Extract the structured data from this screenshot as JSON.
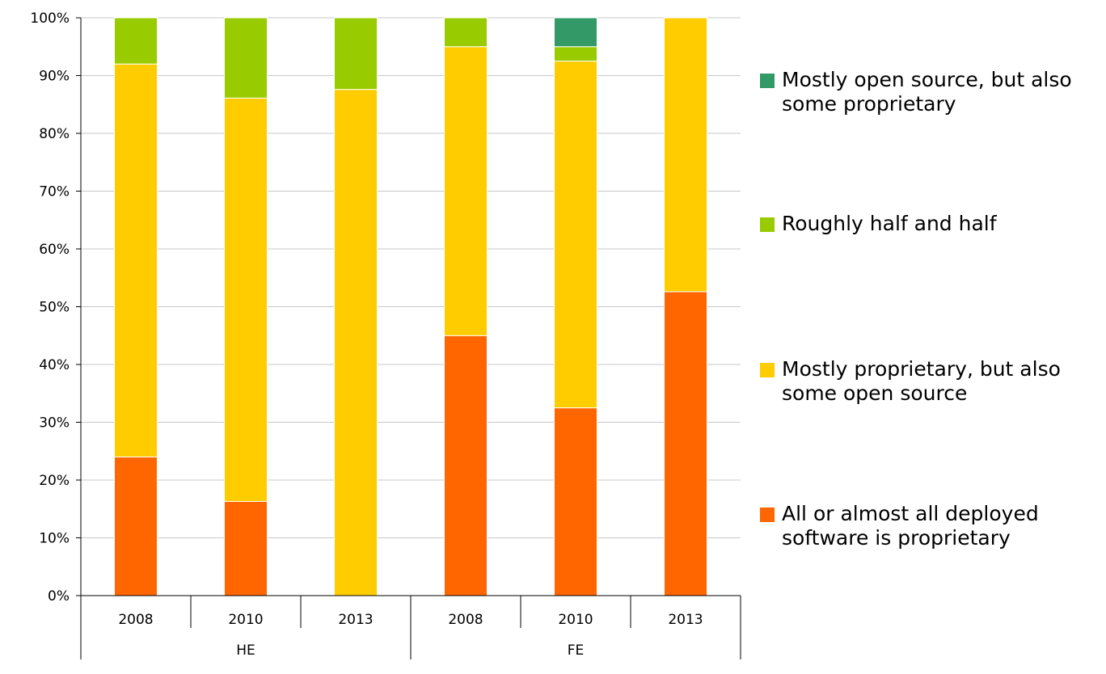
{
  "chart_data": {
    "type": "bar",
    "stacked": true,
    "percent": true,
    "groups": [
      {
        "label": "HE",
        "categories": [
          "2008",
          "2010",
          "2013"
        ]
      },
      {
        "label": "FE",
        "categories": [
          "2008",
          "2010",
          "2013"
        ]
      }
    ],
    "categories": [
      "2008",
      "2010",
      "2013",
      "2008",
      "2010",
      "2013"
    ],
    "series": [
      {
        "name": "All or almost all deployed software is proprietary",
        "color": "#ff6600",
        "values": [
          24,
          16.3,
          0,
          45,
          32.5,
          52.6
        ]
      },
      {
        "name": "Mostly proprietary, but also some open source",
        "color": "#ffcc00",
        "values": [
          68,
          69.8,
          87.6,
          50,
          60,
          47.4
        ]
      },
      {
        "name": "Roughly half and half",
        "color": "#99cc00",
        "values": [
          8,
          13.9,
          12.4,
          5,
          2.5,
          0
        ]
      },
      {
        "name": "Mostly open source, but also some proprietary",
        "color": "#339966",
        "values": [
          0,
          0,
          0,
          0,
          5,
          0
        ]
      }
    ],
    "yticks": [
      "0%",
      "10%",
      "20%",
      "30%",
      "40%",
      "50%",
      "60%",
      "70%",
      "80%",
      "90%",
      "100%"
    ],
    "ylim": [
      0,
      100
    ],
    "grid": true,
    "legend": "right",
    "title": "",
    "xlabel": "",
    "ylabel": ""
  },
  "legend": {
    "items": [
      {
        "label": "Mostly open source, but also some proprietary",
        "color": "#339966"
      },
      {
        "label": "Roughly half and half",
        "color": "#99cc00"
      },
      {
        "label": "Mostly proprietary, but also some open source",
        "color": "#ffcc00"
      },
      {
        "label": "All or almost all deployed software is proprietary",
        "color": "#ff6600"
      }
    ]
  }
}
